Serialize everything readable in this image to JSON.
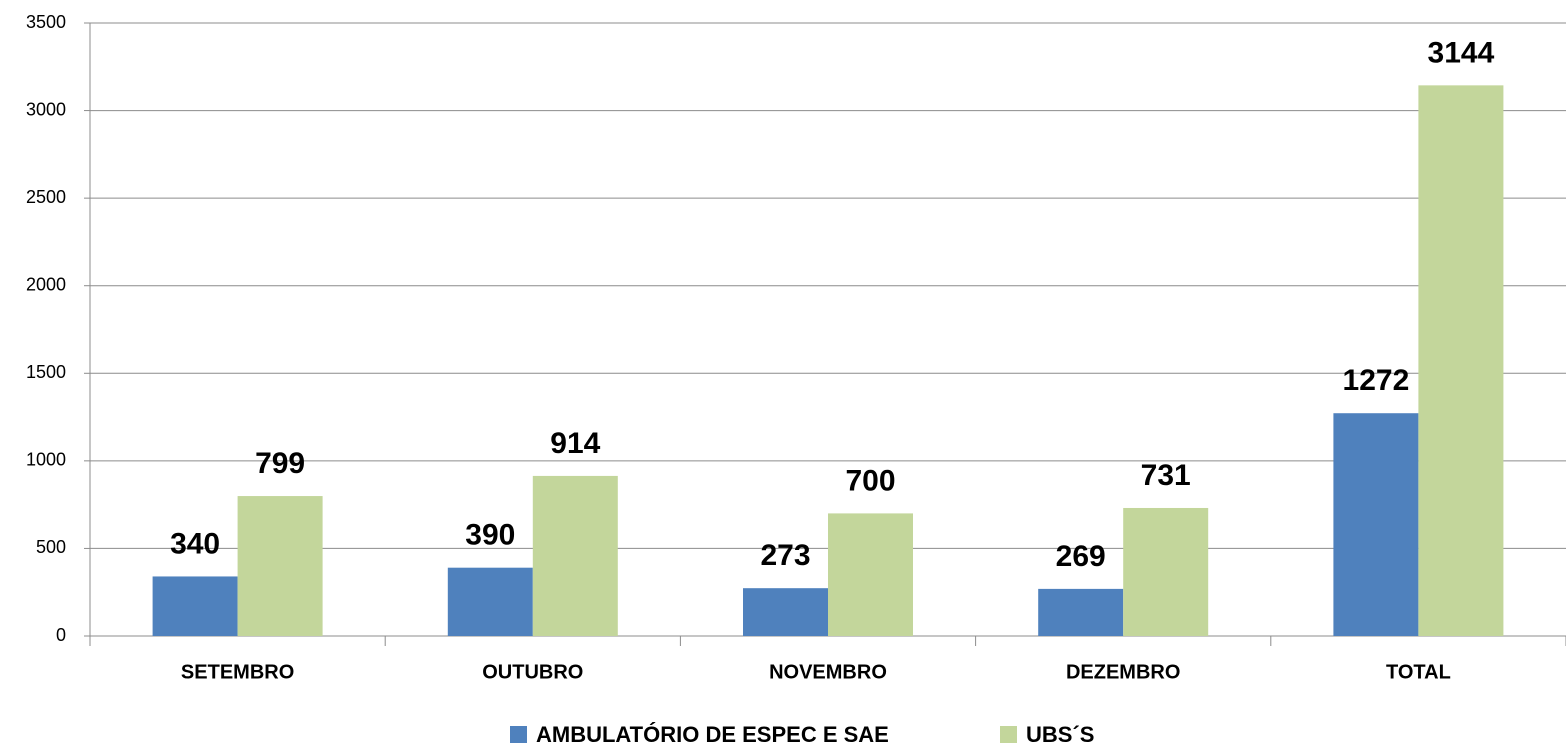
{
  "chart_data": {
    "type": "bar",
    "categories": [
      "SETEMBRO",
      "OUTUBRO",
      "NOVEMBRO",
      "DEZEMBRO",
      "TOTAL"
    ],
    "series": [
      {
        "name": "AMBULATÓRIO DE ESPEC E SAE",
        "color": "#4f81bd",
        "values": [
          340,
          390,
          273,
          269,
          1272
        ]
      },
      {
        "name": "UBS´S",
        "color": "#c3d69b",
        "values": [
          799,
          914,
          700,
          731,
          3144
        ]
      }
    ],
    "ylim": [
      0,
      3500
    ],
    "yticks": [
      0,
      500,
      1000,
      1500,
      2000,
      2500,
      3000,
      3500
    ],
    "grid": true,
    "legend": "bottom"
  }
}
